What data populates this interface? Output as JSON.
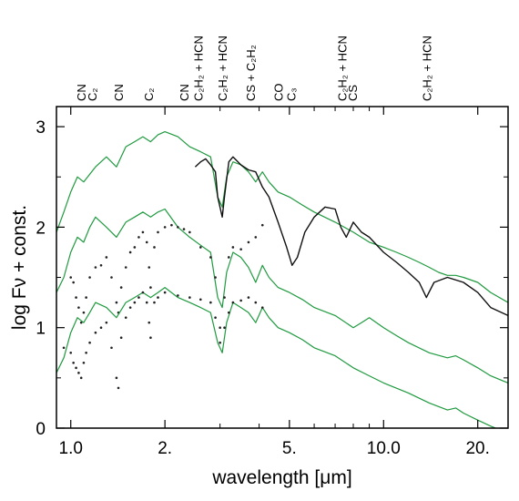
{
  "chart_data": {
    "type": "line",
    "title": "",
    "xlabel": "wavelength [μm]",
    "ylabel": "log Fν + const.",
    "xscale": "log",
    "xlim": [
      0.9,
      25
    ],
    "ylim": [
      0,
      3.2
    ],
    "x_ticks": [
      {
        "value": 1.0,
        "label": "1.0"
      },
      {
        "value": 2.0,
        "label": "2."
      },
      {
        "value": 5.0,
        "label": "5."
      },
      {
        "value": 10.0,
        "label": "10.0"
      },
      {
        "value": 20.0,
        "label": "20."
      }
    ],
    "y_ticks": [
      {
        "value": 0,
        "label": "0"
      },
      {
        "value": 1,
        "label": "1"
      },
      {
        "value": 2,
        "label": "2"
      },
      {
        "value": 3,
        "label": "3"
      }
    ],
    "grid": false,
    "legend": "none",
    "annotations": [
      {
        "x": 1.08,
        "label": "CN"
      },
      {
        "x": 1.17,
        "label": "C₂"
      },
      {
        "x": 1.42,
        "label": "CN"
      },
      {
        "x": 1.77,
        "label": "C₂"
      },
      {
        "x": 2.3,
        "label": "CN"
      },
      {
        "x": 2.55,
        "label": "C₂H₂ + HCN"
      },
      {
        "x": 3.05,
        "label": "C₂H₂ + HCN"
      },
      {
        "x": 3.75,
        "label": "CS + C₂H₂"
      },
      {
        "x": 4.6,
        "label": "CO"
      },
      {
        "x": 5.05,
        "label": "C₃"
      },
      {
        "x": 7.35,
        "label": "C₂H₂ + HCN"
      },
      {
        "x": 7.95,
        "label": "CS"
      },
      {
        "x": 13.7,
        "label": "C₂H₂ + HCN"
      }
    ],
    "series": [
      {
        "style": "model",
        "color": "#1f9a3f",
        "x": [
          0.9,
          0.95,
          1.0,
          1.05,
          1.1,
          1.2,
          1.3,
          1.4,
          1.5,
          1.6,
          1.7,
          1.8,
          1.9,
          2.0,
          2.2,
          2.4,
          2.6,
          2.8,
          2.95,
          3.05,
          3.15,
          3.3,
          3.5,
          3.7,
          3.9,
          4.1,
          4.3,
          4.6,
          5.0,
          5.5,
          6.0,
          7.0,
          8.0,
          9.0,
          10.0,
          11.0,
          12.0,
          13.0,
          14.0,
          15.0,
          16.0,
          17.0,
          18.0,
          20.0,
          22.0,
          25.0
        ],
        "y": [
          1.95,
          2.15,
          2.35,
          2.5,
          2.45,
          2.6,
          2.7,
          2.6,
          2.8,
          2.85,
          2.9,
          2.85,
          2.92,
          2.95,
          2.9,
          2.8,
          2.75,
          2.7,
          2.3,
          2.2,
          2.5,
          2.65,
          2.62,
          2.55,
          2.45,
          2.55,
          2.45,
          2.35,
          2.3,
          2.22,
          2.15,
          2.05,
          1.95,
          1.85,
          1.8,
          1.75,
          1.7,
          1.65,
          1.6,
          1.55,
          1.52,
          1.52,
          1.5,
          1.45,
          1.35,
          1.25
        ]
      },
      {
        "style": "observed",
        "color": "#111111",
        "x": [
          2.5,
          2.6,
          2.7,
          2.8,
          2.9,
          2.95,
          3.0,
          3.05,
          3.1,
          3.2,
          3.3,
          3.5,
          3.7,
          3.9,
          4.1,
          4.3,
          4.6,
          4.9,
          5.1,
          5.3,
          5.6,
          6.0,
          6.5,
          7.0,
          7.3,
          7.6,
          8.0,
          8.5,
          9.0,
          10.0,
          11.0,
          12.0,
          13.0,
          13.7,
          14.5,
          16.0,
          18.0,
          20.0,
          22.0,
          25.0
        ],
        "y": [
          2.6,
          2.65,
          2.68,
          2.62,
          2.55,
          2.3,
          2.2,
          2.1,
          2.3,
          2.65,
          2.7,
          2.62,
          2.57,
          2.55,
          2.4,
          2.3,
          2.05,
          1.8,
          1.62,
          1.7,
          1.95,
          2.1,
          2.2,
          2.18,
          2.0,
          1.9,
          2.05,
          1.95,
          1.9,
          1.75,
          1.65,
          1.55,
          1.45,
          1.3,
          1.45,
          1.5,
          1.45,
          1.35,
          1.2,
          1.12
        ]
      },
      {
        "style": "model",
        "color": "#1f9a3f",
        "x": [
          0.9,
          0.95,
          1.0,
          1.05,
          1.1,
          1.15,
          1.2,
          1.3,
          1.4,
          1.5,
          1.6,
          1.7,
          1.8,
          1.9,
          2.0,
          2.2,
          2.4,
          2.6,
          2.8,
          2.95,
          3.05,
          3.15,
          3.3,
          3.5,
          3.7,
          3.9,
          4.1,
          4.3,
          4.6,
          5.0,
          5.5,
          6.0,
          7.0,
          8.0,
          8.5,
          9.0,
          10.0,
          11.0,
          12.0,
          14.0,
          16.0,
          17.0,
          18.0,
          20.0,
          22.0,
          25.0
        ],
        "y": [
          1.35,
          1.5,
          1.75,
          1.9,
          1.85,
          2.0,
          2.1,
          2.0,
          1.9,
          2.05,
          2.1,
          2.15,
          2.1,
          2.15,
          2.18,
          2.0,
          1.9,
          1.82,
          1.75,
          1.3,
          1.2,
          1.55,
          1.75,
          1.7,
          1.6,
          1.45,
          1.62,
          1.5,
          1.4,
          1.35,
          1.28,
          1.2,
          1.12,
          1.0,
          1.05,
          1.1,
          1.0,
          0.92,
          0.85,
          0.75,
          0.7,
          0.72,
          0.68,
          0.6,
          0.52,
          0.45
        ]
      },
      {
        "style": "observed-dots",
        "color": "#222222",
        "x": [
          1.0,
          1.02,
          1.04,
          1.06,
          1.08,
          1.1,
          1.12,
          1.15,
          1.2,
          1.25,
          1.3,
          1.35,
          1.4,
          1.42,
          1.45,
          1.5,
          1.55,
          1.6,
          1.65,
          1.7,
          1.75,
          1.78,
          1.8,
          1.85,
          1.9,
          2.0,
          2.1,
          2.2,
          2.3,
          2.4,
          2.6,
          2.8,
          2.9,
          3.0,
          3.1,
          3.2,
          3.3,
          3.5,
          3.7,
          3.9,
          4.1
        ],
        "y": [
          1.5,
          1.45,
          1.3,
          1.2,
          1.05,
          1.15,
          1.3,
          1.5,
          1.6,
          1.62,
          1.7,
          1.5,
          1.25,
          1.15,
          1.4,
          1.6,
          1.75,
          1.8,
          1.9,
          1.95,
          1.85,
          1.6,
          1.4,
          1.8,
          1.95,
          2.0,
          2.02,
          2.0,
          1.98,
          1.95,
          1.8,
          1.7,
          1.5,
          1.0,
          1.3,
          1.7,
          1.8,
          1.78,
          1.85,
          1.9,
          2.02
        ]
      },
      {
        "style": "model",
        "color": "#1f9a3f",
        "x": [
          0.9,
          0.95,
          1.0,
          1.05,
          1.1,
          1.15,
          1.2,
          1.3,
          1.4,
          1.5,
          1.6,
          1.7,
          1.8,
          1.9,
          2.0,
          2.2,
          2.4,
          2.6,
          2.8,
          2.95,
          3.05,
          3.15,
          3.3,
          3.5,
          3.7,
          3.9,
          4.1,
          4.3,
          4.6,
          5.0,
          5.5,
          6.0,
          7.0,
          8.0,
          9.0,
          10.0,
          12.0,
          14.0,
          16.0,
          17.0,
          18.0,
          20.0,
          22.0,
          25.0
        ],
        "y": [
          0.55,
          0.7,
          0.95,
          1.1,
          1.05,
          1.15,
          1.25,
          1.2,
          1.1,
          1.25,
          1.3,
          1.35,
          1.3,
          1.35,
          1.4,
          1.3,
          1.25,
          1.2,
          1.15,
          0.85,
          0.75,
          1.05,
          1.25,
          1.2,
          1.15,
          1.05,
          1.2,
          1.1,
          1.0,
          0.95,
          0.88,
          0.8,
          0.72,
          0.6,
          0.52,
          0.45,
          0.35,
          0.25,
          0.18,
          0.2,
          0.15,
          0.08,
          0.02,
          -0.05
        ]
      },
      {
        "style": "observed-dots",
        "color": "#222222",
        "x": [
          0.95,
          1.0,
          1.02,
          1.04,
          1.06,
          1.08,
          1.1,
          1.12,
          1.15,
          1.2,
          1.25,
          1.3,
          1.35,
          1.4,
          1.42,
          1.45,
          1.5,
          1.55,
          1.6,
          1.65,
          1.7,
          1.75,
          1.78,
          1.8,
          1.85,
          1.9,
          2.0,
          2.2,
          2.4,
          2.6,
          2.8,
          2.9,
          3.0,
          3.1,
          3.2,
          3.3,
          3.5,
          3.7,
          3.9,
          4.1
        ],
        "y": [
          0.8,
          0.75,
          0.65,
          0.6,
          0.55,
          0.5,
          0.65,
          0.75,
          0.85,
          0.95,
          1.0,
          1.05,
          0.8,
          0.5,
          0.4,
          0.9,
          1.1,
          1.2,
          1.25,
          1.3,
          1.35,
          1.25,
          1.05,
          0.9,
          1.25,
          1.3,
          1.35,
          1.32,
          1.3,
          1.28,
          1.25,
          1.1,
          0.85,
          1.0,
          1.15,
          1.25,
          1.27,
          1.3,
          1.25,
          1.2
        ]
      }
    ]
  }
}
